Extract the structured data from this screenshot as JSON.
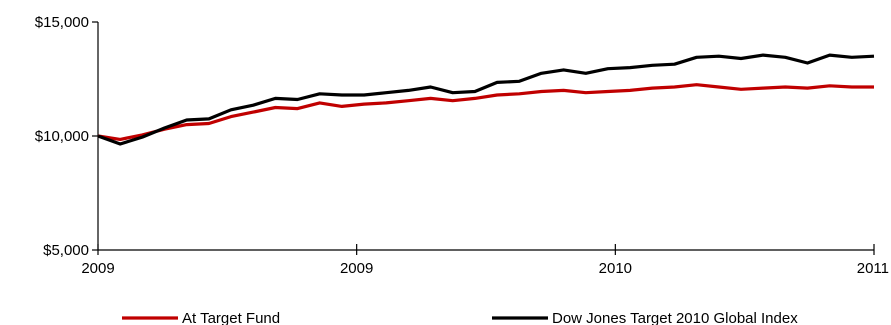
{
  "chart_data": {
    "type": "line",
    "y_ticks": [
      {
        "value": 15000,
        "label": "$15,000"
      },
      {
        "value": 10000,
        "label": "$10,000"
      },
      {
        "value": 5000,
        "label": "$5,000"
      }
    ],
    "x_ticks": [
      "2009",
      "2009",
      "2010",
      "2011"
    ],
    "ylim": [
      5000,
      15000
    ],
    "grid": false,
    "legend_position": "bottom",
    "series": [
      {
        "name": "At Target Fund",
        "color": "#c00000",
        "values": [
          10000,
          9850,
          10050,
          10300,
          10500,
          10550,
          10850,
          11050,
          11250,
          11200,
          11450,
          11300,
          11400,
          11450,
          11550,
          11650,
          11550,
          11650,
          11800,
          11850,
          11950,
          12000,
          11900,
          11950,
          12000,
          12100,
          12150,
          12250,
          12150,
          12050,
          12100,
          12150,
          12100,
          12200,
          12150,
          12150
        ]
      },
      {
        "name": "Dow Jones Target 2010 Global Index",
        "color": "#000000",
        "values": [
          10000,
          9650,
          9950,
          10350,
          10700,
          10750,
          11150,
          11350,
          11650,
          11600,
          11850,
          11800,
          11800,
          11900,
          12000,
          12150,
          11900,
          11950,
          12350,
          12400,
          12750,
          12900,
          12750,
          12950,
          13000,
          13100,
          13150,
          13450,
          13500,
          13400,
          13550,
          13450,
          13200,
          13550,
          13450,
          13500
        ]
      }
    ]
  }
}
